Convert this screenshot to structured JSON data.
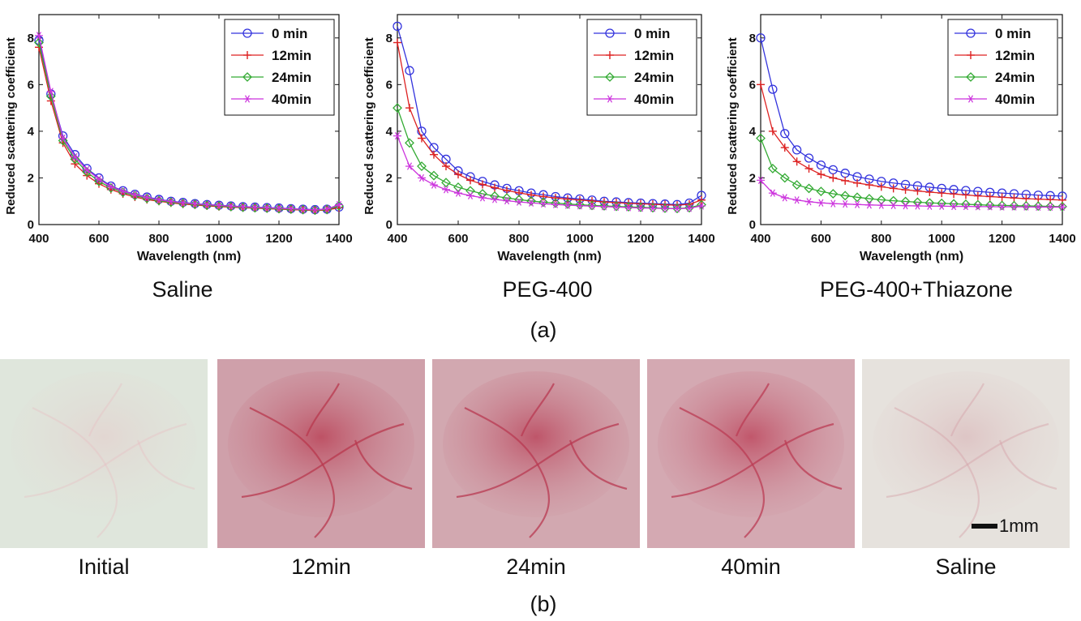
{
  "part_a_label": "(a)",
  "part_b_label": "(b)",
  "legend": [
    "0 min",
    "12min",
    "24min",
    "40min"
  ],
  "series_colors": [
    "#3333dd",
    "#dd2222",
    "#33aa33",
    "#cc33dd"
  ],
  "series_markers": [
    "circle",
    "plus",
    "diamond",
    "star"
  ],
  "chart_data": [
    {
      "type": "line",
      "caption": "Saline",
      "xlabel": "Wavelength (nm)",
      "ylabel": "Reduced scattering coefficient",
      "xlim": [
        400,
        1400
      ],
      "ylim": [
        0,
        9
      ],
      "xticks": [
        400,
        600,
        800,
        1000,
        1200,
        1400
      ],
      "yticks": [
        0,
        2,
        4,
        6,
        8
      ],
      "legend_position": "top-right",
      "x": [
        400,
        440,
        480,
        520,
        560,
        600,
        640,
        680,
        720,
        760,
        800,
        840,
        880,
        920,
        960,
        1000,
        1040,
        1080,
        1120,
        1160,
        1200,
        1240,
        1280,
        1320,
        1360,
        1400
      ],
      "series": [
        {
          "name": "0 min",
          "values": [
            7.9,
            5.6,
            3.8,
            3.0,
            2.4,
            2.0,
            1.65,
            1.45,
            1.3,
            1.18,
            1.08,
            1.0,
            0.95,
            0.9,
            0.86,
            0.83,
            0.8,
            0.77,
            0.75,
            0.73,
            0.71,
            0.68,
            0.66,
            0.64,
            0.66,
            0.75
          ]
        },
        {
          "name": "12min",
          "values": [
            7.6,
            5.3,
            3.5,
            2.6,
            2.1,
            1.75,
            1.5,
            1.32,
            1.18,
            1.07,
            1.0,
            0.93,
            0.88,
            0.84,
            0.8,
            0.77,
            0.75,
            0.72,
            0.7,
            0.68,
            0.66,
            0.64,
            0.62,
            0.6,
            0.62,
            0.72
          ]
        },
        {
          "name": "24min",
          "values": [
            7.8,
            5.5,
            3.6,
            2.8,
            2.25,
            1.85,
            1.57,
            1.38,
            1.24,
            1.12,
            1.03,
            0.96,
            0.91,
            0.87,
            0.83,
            0.8,
            0.77,
            0.74,
            0.72,
            0.7,
            0.68,
            0.66,
            0.64,
            0.62,
            0.65,
            0.8
          ]
        },
        {
          "name": "40min",
          "values": [
            8.1,
            5.7,
            3.7,
            2.9,
            2.35,
            1.95,
            1.62,
            1.43,
            1.28,
            1.16,
            1.06,
            0.99,
            0.93,
            0.89,
            0.85,
            0.82,
            0.79,
            0.76,
            0.74,
            0.72,
            0.7,
            0.68,
            0.65,
            0.63,
            0.67,
            0.85
          ]
        }
      ]
    },
    {
      "type": "line",
      "caption": "PEG-400",
      "xlabel": "Wavelength (nm)",
      "ylabel": "Reduced scattering coefficient",
      "xlim": [
        400,
        1400
      ],
      "ylim": [
        0,
        9
      ],
      "xticks": [
        400,
        600,
        800,
        1000,
        1200,
        1400
      ],
      "yticks": [
        0,
        2,
        4,
        6,
        8
      ],
      "legend_position": "top-right",
      "x": [
        400,
        440,
        480,
        520,
        560,
        600,
        640,
        680,
        720,
        760,
        800,
        840,
        880,
        920,
        960,
        1000,
        1040,
        1080,
        1120,
        1160,
        1200,
        1240,
        1280,
        1320,
        1360,
        1400
      ],
      "series": [
        {
          "name": "0 min",
          "values": [
            8.5,
            6.6,
            4.0,
            3.3,
            2.8,
            2.3,
            2.05,
            1.85,
            1.7,
            1.55,
            1.45,
            1.35,
            1.28,
            1.2,
            1.14,
            1.1,
            1.05,
            1.0,
            0.97,
            0.94,
            0.92,
            0.9,
            0.88,
            0.86,
            0.92,
            1.25
          ]
        },
        {
          "name": "12min",
          "values": [
            7.8,
            5.0,
            3.7,
            3.0,
            2.5,
            2.15,
            1.9,
            1.72,
            1.58,
            1.46,
            1.36,
            1.27,
            1.2,
            1.14,
            1.09,
            1.05,
            1.01,
            0.97,
            0.94,
            0.91,
            0.89,
            0.87,
            0.85,
            0.83,
            0.87,
            1.05
          ]
        },
        {
          "name": "24min",
          "values": [
            5.0,
            3.5,
            2.5,
            2.1,
            1.8,
            1.6,
            1.45,
            1.32,
            1.22,
            1.14,
            1.07,
            1.01,
            0.96,
            0.92,
            0.88,
            0.85,
            0.82,
            0.8,
            0.78,
            0.76,
            0.74,
            0.72,
            0.7,
            0.69,
            0.72,
            0.85
          ]
        },
        {
          "name": "40min",
          "values": [
            3.8,
            2.5,
            2.0,
            1.7,
            1.5,
            1.35,
            1.24,
            1.15,
            1.08,
            1.02,
            0.97,
            0.93,
            0.89,
            0.86,
            0.83,
            0.81,
            0.79,
            0.77,
            0.75,
            0.73,
            0.71,
            0.7,
            0.69,
            0.68,
            0.7,
            0.8
          ]
        }
      ]
    },
    {
      "type": "line",
      "caption": "PEG-400+Thiazone",
      "xlabel": "Wavelength (nm)",
      "ylabel": "Reduced scattering coefficient",
      "xlim": [
        400,
        1400
      ],
      "ylim": [
        0,
        9
      ],
      "xticks": [
        400,
        600,
        800,
        1000,
        1200,
        1400
      ],
      "yticks": [
        0,
        2,
        4,
        6,
        8
      ],
      "legend_position": "top-right",
      "x": [
        400,
        440,
        480,
        520,
        560,
        600,
        640,
        680,
        720,
        760,
        800,
        840,
        880,
        920,
        960,
        1000,
        1040,
        1080,
        1120,
        1160,
        1200,
        1240,
        1280,
        1320,
        1360,
        1400
      ],
      "series": [
        {
          "name": "0 min",
          "values": [
            8.0,
            5.8,
            3.9,
            3.2,
            2.85,
            2.55,
            2.35,
            2.2,
            2.05,
            1.95,
            1.85,
            1.78,
            1.72,
            1.66,
            1.6,
            1.55,
            1.5,
            1.46,
            1.42,
            1.38,
            1.35,
            1.32,
            1.29,
            1.26,
            1.24,
            1.22
          ]
        },
        {
          "name": "12min",
          "values": [
            6.0,
            4.0,
            3.3,
            2.7,
            2.4,
            2.15,
            2.0,
            1.88,
            1.78,
            1.7,
            1.62,
            1.55,
            1.49,
            1.44,
            1.39,
            1.35,
            1.31,
            1.27,
            1.23,
            1.2,
            1.17,
            1.14,
            1.11,
            1.09,
            1.07,
            1.05
          ]
        },
        {
          "name": "24min",
          "values": [
            3.7,
            2.4,
            2.0,
            1.7,
            1.55,
            1.42,
            1.32,
            1.24,
            1.17,
            1.11,
            1.06,
            1.02,
            0.99,
            0.96,
            0.93,
            0.91,
            0.89,
            0.87,
            0.85,
            0.83,
            0.82,
            0.81,
            0.8,
            0.79,
            0.78,
            0.77
          ]
        },
        {
          "name": "40min",
          "values": [
            1.9,
            1.35,
            1.15,
            1.05,
            0.98,
            0.93,
            0.9,
            0.88,
            0.86,
            0.84,
            0.83,
            0.82,
            0.81,
            0.8,
            0.79,
            0.79,
            0.78,
            0.78,
            0.77,
            0.77,
            0.76,
            0.76,
            0.76,
            0.75,
            0.75,
            0.75
          ]
        }
      ]
    }
  ],
  "photos": [
    {
      "label": "Initial",
      "tint": "#dfe6dc",
      "vessel": "#e8b9bf",
      "vessel_opacity": 0.35
    },
    {
      "label": "12min",
      "tint": "#cfa0aa",
      "vessel": "#b8384e",
      "vessel_opacity": 0.75
    },
    {
      "label": "24min",
      "tint": "#d2a8b0",
      "vessel": "#b83a52",
      "vessel_opacity": 0.75
    },
    {
      "label": "40min",
      "tint": "#d4a9b2",
      "vessel": "#bb3c54",
      "vessel_opacity": 0.75
    },
    {
      "label": "Saline",
      "tint": "#e6e2dd",
      "vessel": "#d4a2a8",
      "vessel_opacity": 0.45
    }
  ],
  "scale_bar_label": "1mm"
}
